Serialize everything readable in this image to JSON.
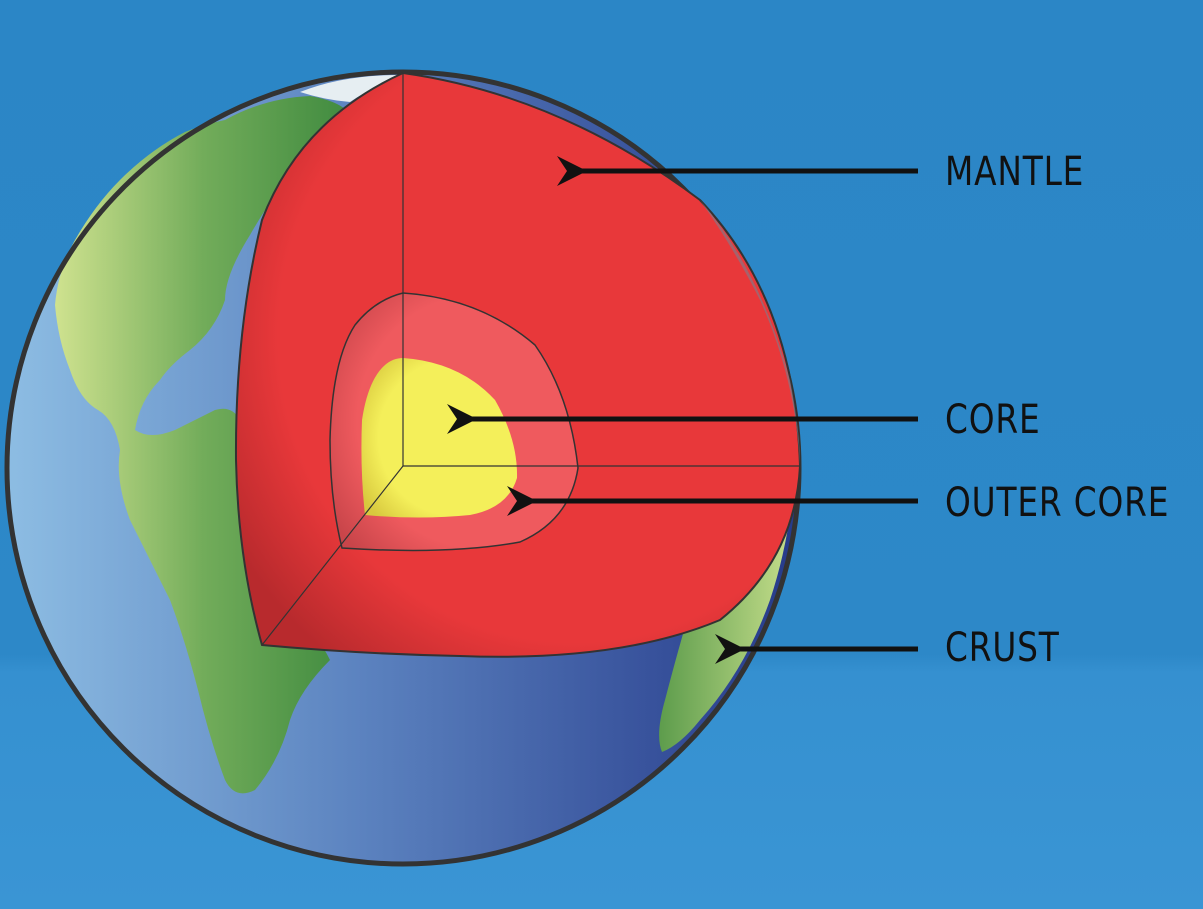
{
  "labels": {
    "mantle": "MANTLE",
    "core": "CORE",
    "outer_core": "OUTER CORE",
    "crust": "CRUST"
  },
  "colors": {
    "background": "#2b86c6",
    "ocean_light": "#7fb0dc",
    "ocean_dark": "#2b3f8c",
    "land": "#6aa84f",
    "mantle": "#e8383a",
    "outer_core": "#ef5a5e",
    "core": "#f4ef5a",
    "outline": "#333333"
  }
}
